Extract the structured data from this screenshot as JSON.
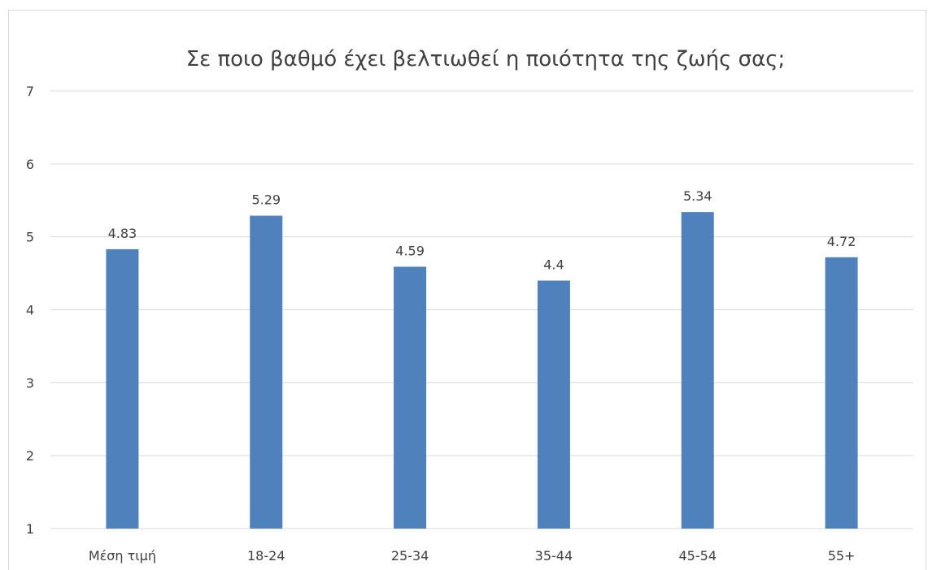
{
  "chart_data": {
    "type": "bar",
    "title": "Σε ποιο βαθμό έχει βελτιωθεί η ποιότητα της ζωής σας;",
    "categories": [
      "Μέση τιμή",
      "18-24",
      "25-34",
      "35-44",
      "45-54",
      "55+"
    ],
    "values": [
      4.83,
      5.29,
      4.59,
      4.4,
      5.34,
      4.72
    ],
    "data_labels": [
      "4.83",
      "5.29",
      "4.59",
      "4.4",
      "5.34",
      "4.72"
    ],
    "ylim": [
      1,
      7
    ],
    "yticks": [
      1,
      2,
      3,
      4,
      5,
      6,
      7
    ],
    "grid": true,
    "legend": "none",
    "colors": {
      "bar": "#4f81bd",
      "grid": "#d9d9d9",
      "text": "#404040"
    }
  }
}
